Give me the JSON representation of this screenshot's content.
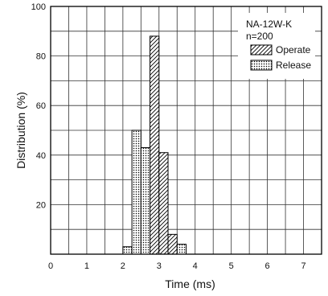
{
  "chart_data": {
    "type": "bar",
    "xlabel": "Time (ms)",
    "ylabel": "Distribution (%)",
    "xlim": [
      0,
      7.5
    ],
    "ylim": [
      0,
      100
    ],
    "x_ticks": [
      "0",
      "1",
      "2",
      "3",
      "4",
      "5",
      "6",
      "7"
    ],
    "y_ticks": [
      "20",
      "40",
      "60",
      "80",
      "100"
    ],
    "grid": true,
    "annotations": [
      "NA-12W-K",
      "n=200"
    ],
    "legend_position": "top-right",
    "series": [
      {
        "name": "Operate",
        "pattern": "hatch",
        "bins": [
          {
            "x0": 2.5,
            "x1": 2.75,
            "value": 8
          },
          {
            "x0": 2.75,
            "x1": 3.0,
            "value": 88
          },
          {
            "x0": 3.0,
            "x1": 3.25,
            "value": 41
          },
          {
            "x0": 3.25,
            "x1": 3.5,
            "value": 8
          }
        ]
      },
      {
        "name": "Release",
        "pattern": "dots",
        "bins": [
          {
            "x0": 2.0,
            "x1": 2.25,
            "value": 3
          },
          {
            "x0": 2.25,
            "x1": 2.5,
            "value": 50
          },
          {
            "x0": 2.5,
            "x1": 2.75,
            "value": 43
          },
          {
            "x0": 3.5,
            "x1": 3.75,
            "value": 4
          }
        ]
      }
    ]
  }
}
